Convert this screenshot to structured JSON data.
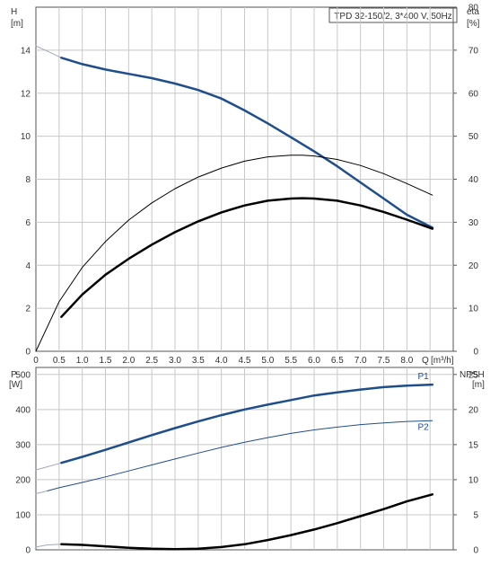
{
  "title": "TPD 32-150/2, 3*400 V, 50Hz",
  "chart_data": [
    {
      "type": "line",
      "title": "TPD 32-150/2, 3*400 V, 50Hz",
      "left_axis": {
        "label": "H",
        "unit": "[m]",
        "range": [
          0,
          16
        ],
        "ticks": [
          0,
          2,
          4,
          6,
          8,
          10,
          12,
          14
        ]
      },
      "right_axis": {
        "label": "eta",
        "unit": "[%]",
        "range": [
          0,
          80
        ],
        "ticks": [
          0,
          10,
          20,
          30,
          40,
          50,
          60,
          70,
          80
        ]
      },
      "x_axis": {
        "label": "Q",
        "unit": "[m³/h]",
        "range": [
          0,
          9
        ],
        "ticks": [
          0,
          0.5,
          1.0,
          1.5,
          2.0,
          2.5,
          3.0,
          3.5,
          4.0,
          4.5,
          5.0,
          5.5,
          6.0,
          6.5,
          7.0,
          7.5,
          8.0
        ]
      },
      "tick_labels_x": [
        "0",
        "0.5",
        "1.0",
        "1.5",
        "2.0",
        "2.5",
        "3.0",
        "3.5",
        "4.0",
        "4.5",
        "5.0",
        "5.5",
        "6.0",
        "6.5",
        "7.0",
        "7.5",
        "8.0"
      ],
      "grid": true,
      "series": [
        {
          "id": "h-curve-extension",
          "axis": "left",
          "color": "#a0a8b8",
          "width": 1,
          "x": [
            0,
            0.25,
            0.55
          ],
          "y": [
            14.2,
            13.95,
            13.65
          ]
        },
        {
          "id": "h-curve",
          "axis": "left",
          "color": "#1f4e8c",
          "width": 2.5,
          "x": [
            0.55,
            1.0,
            1.5,
            2.0,
            2.5,
            3.0,
            3.5,
            4.0,
            4.5,
            5.0,
            5.5,
            6.0,
            6.5,
            7.0,
            7.5,
            8.0,
            8.55
          ],
          "y": [
            13.65,
            13.35,
            13.1,
            12.9,
            12.7,
            12.45,
            12.15,
            11.75,
            11.2,
            10.6,
            9.95,
            9.3,
            8.6,
            7.85,
            7.1,
            6.35,
            5.75
          ]
        },
        {
          "id": "eta-pump",
          "axis": "right",
          "color": "#000000",
          "width": 1,
          "x": [
            0,
            0.5,
            1.0,
            1.5,
            2.0,
            2.5,
            3.0,
            3.5,
            4.0,
            4.5,
            5.0,
            5.5,
            5.75,
            6.0,
            6.5,
            7.0,
            7.5,
            8.0,
            8.55
          ],
          "y": [
            0,
            11.5,
            19.5,
            25.5,
            30.5,
            34.5,
            37.8,
            40.5,
            42.6,
            44.2,
            45.2,
            45.6,
            45.6,
            45.4,
            44.6,
            43.2,
            41.3,
            39.0,
            36.3
          ]
        },
        {
          "id": "eta-total",
          "axis": "right",
          "color": "#000000",
          "width": 2.5,
          "x": [
            0.55,
            1.0,
            1.5,
            2.0,
            2.5,
            3.0,
            3.5,
            4.0,
            4.5,
            5.0,
            5.5,
            5.75,
            6.0,
            6.5,
            7.0,
            7.5,
            8.0,
            8.55
          ],
          "y": [
            8.0,
            13.2,
            17.8,
            21.5,
            24.8,
            27.7,
            30.2,
            32.3,
            33.9,
            35.0,
            35.5,
            35.6,
            35.5,
            35.0,
            33.9,
            32.4,
            30.6,
            28.5
          ]
        }
      ]
    },
    {
      "type": "line",
      "left_axis": {
        "label": "P",
        "unit": "[W]",
        "range": [
          0,
          520
        ],
        "ticks": [
          0,
          100,
          200,
          300,
          400,
          500
        ]
      },
      "right_axis": {
        "label": "NPSH",
        "unit": "[m]",
        "range": [
          0,
          26
        ],
        "ticks": [
          0,
          5,
          10,
          15,
          20,
          25
        ]
      },
      "x_axis": {
        "range": [
          0,
          9
        ]
      },
      "grid": true,
      "series": [
        {
          "id": "p1-extension",
          "axis": "left",
          "color": "#a0a8b8",
          "width": 1,
          "x": [
            0,
            0.25,
            0.55
          ],
          "y": [
            228,
            237,
            248
          ]
        },
        {
          "id": "p1",
          "name": "P1",
          "axis": "left",
          "color": "#1f4e8c",
          "width": 2.5,
          "x": [
            0.55,
            1.0,
            1.5,
            2.0,
            2.5,
            3.0,
            3.5,
            4.0,
            4.5,
            5.0,
            5.5,
            6.0,
            6.5,
            7.0,
            7.5,
            8.0,
            8.55
          ],
          "y": [
            248,
            265,
            285,
            306,
            327,
            347,
            366,
            384,
            400,
            414,
            427,
            440,
            449,
            457,
            464,
            468,
            471
          ]
        },
        {
          "id": "p2-extension",
          "axis": "left",
          "color": "#a0a8b8",
          "width": 1,
          "x": [
            0,
            0.25
          ],
          "y": [
            160,
            168
          ]
        },
        {
          "id": "p2",
          "name": "P2",
          "axis": "left",
          "color": "#1f4e8c",
          "width": 1,
          "x": [
            0.25,
            0.5,
            1.0,
            1.5,
            2.0,
            2.5,
            3.0,
            3.5,
            4.0,
            4.5,
            5.0,
            5.5,
            6.0,
            6.5,
            7.0,
            7.5,
            8.0,
            8.55
          ],
          "y": [
            168,
            177,
            192,
            208,
            225,
            242,
            259,
            276,
            292,
            307,
            320,
            332,
            342,
            350,
            357,
            362,
            366,
            368
          ]
        },
        {
          "id": "npsh-extension",
          "axis": "right",
          "color": "#a0a8b8",
          "width": 1,
          "x": [
            0,
            0.25,
            0.55
          ],
          "y": [
            0.4,
            0.7,
            0.8
          ]
        },
        {
          "id": "npsh",
          "axis": "right",
          "color": "#000000",
          "width": 2.5,
          "x": [
            0.55,
            1.0,
            1.5,
            2.0,
            2.5,
            3.0,
            3.5,
            4.0,
            4.5,
            5.0,
            5.5,
            6.0,
            6.5,
            7.0,
            7.5,
            8.0,
            8.55
          ],
          "y": [
            0.8,
            0.7,
            0.5,
            0.3,
            0.15,
            0.1,
            0.15,
            0.4,
            0.8,
            1.4,
            2.1,
            2.9,
            3.8,
            4.8,
            5.8,
            6.9,
            7.9
          ]
        }
      ],
      "series_labels": [
        {
          "series": "p1",
          "text": "P1"
        },
        {
          "series": "p2",
          "text": "P2"
        }
      ]
    }
  ]
}
